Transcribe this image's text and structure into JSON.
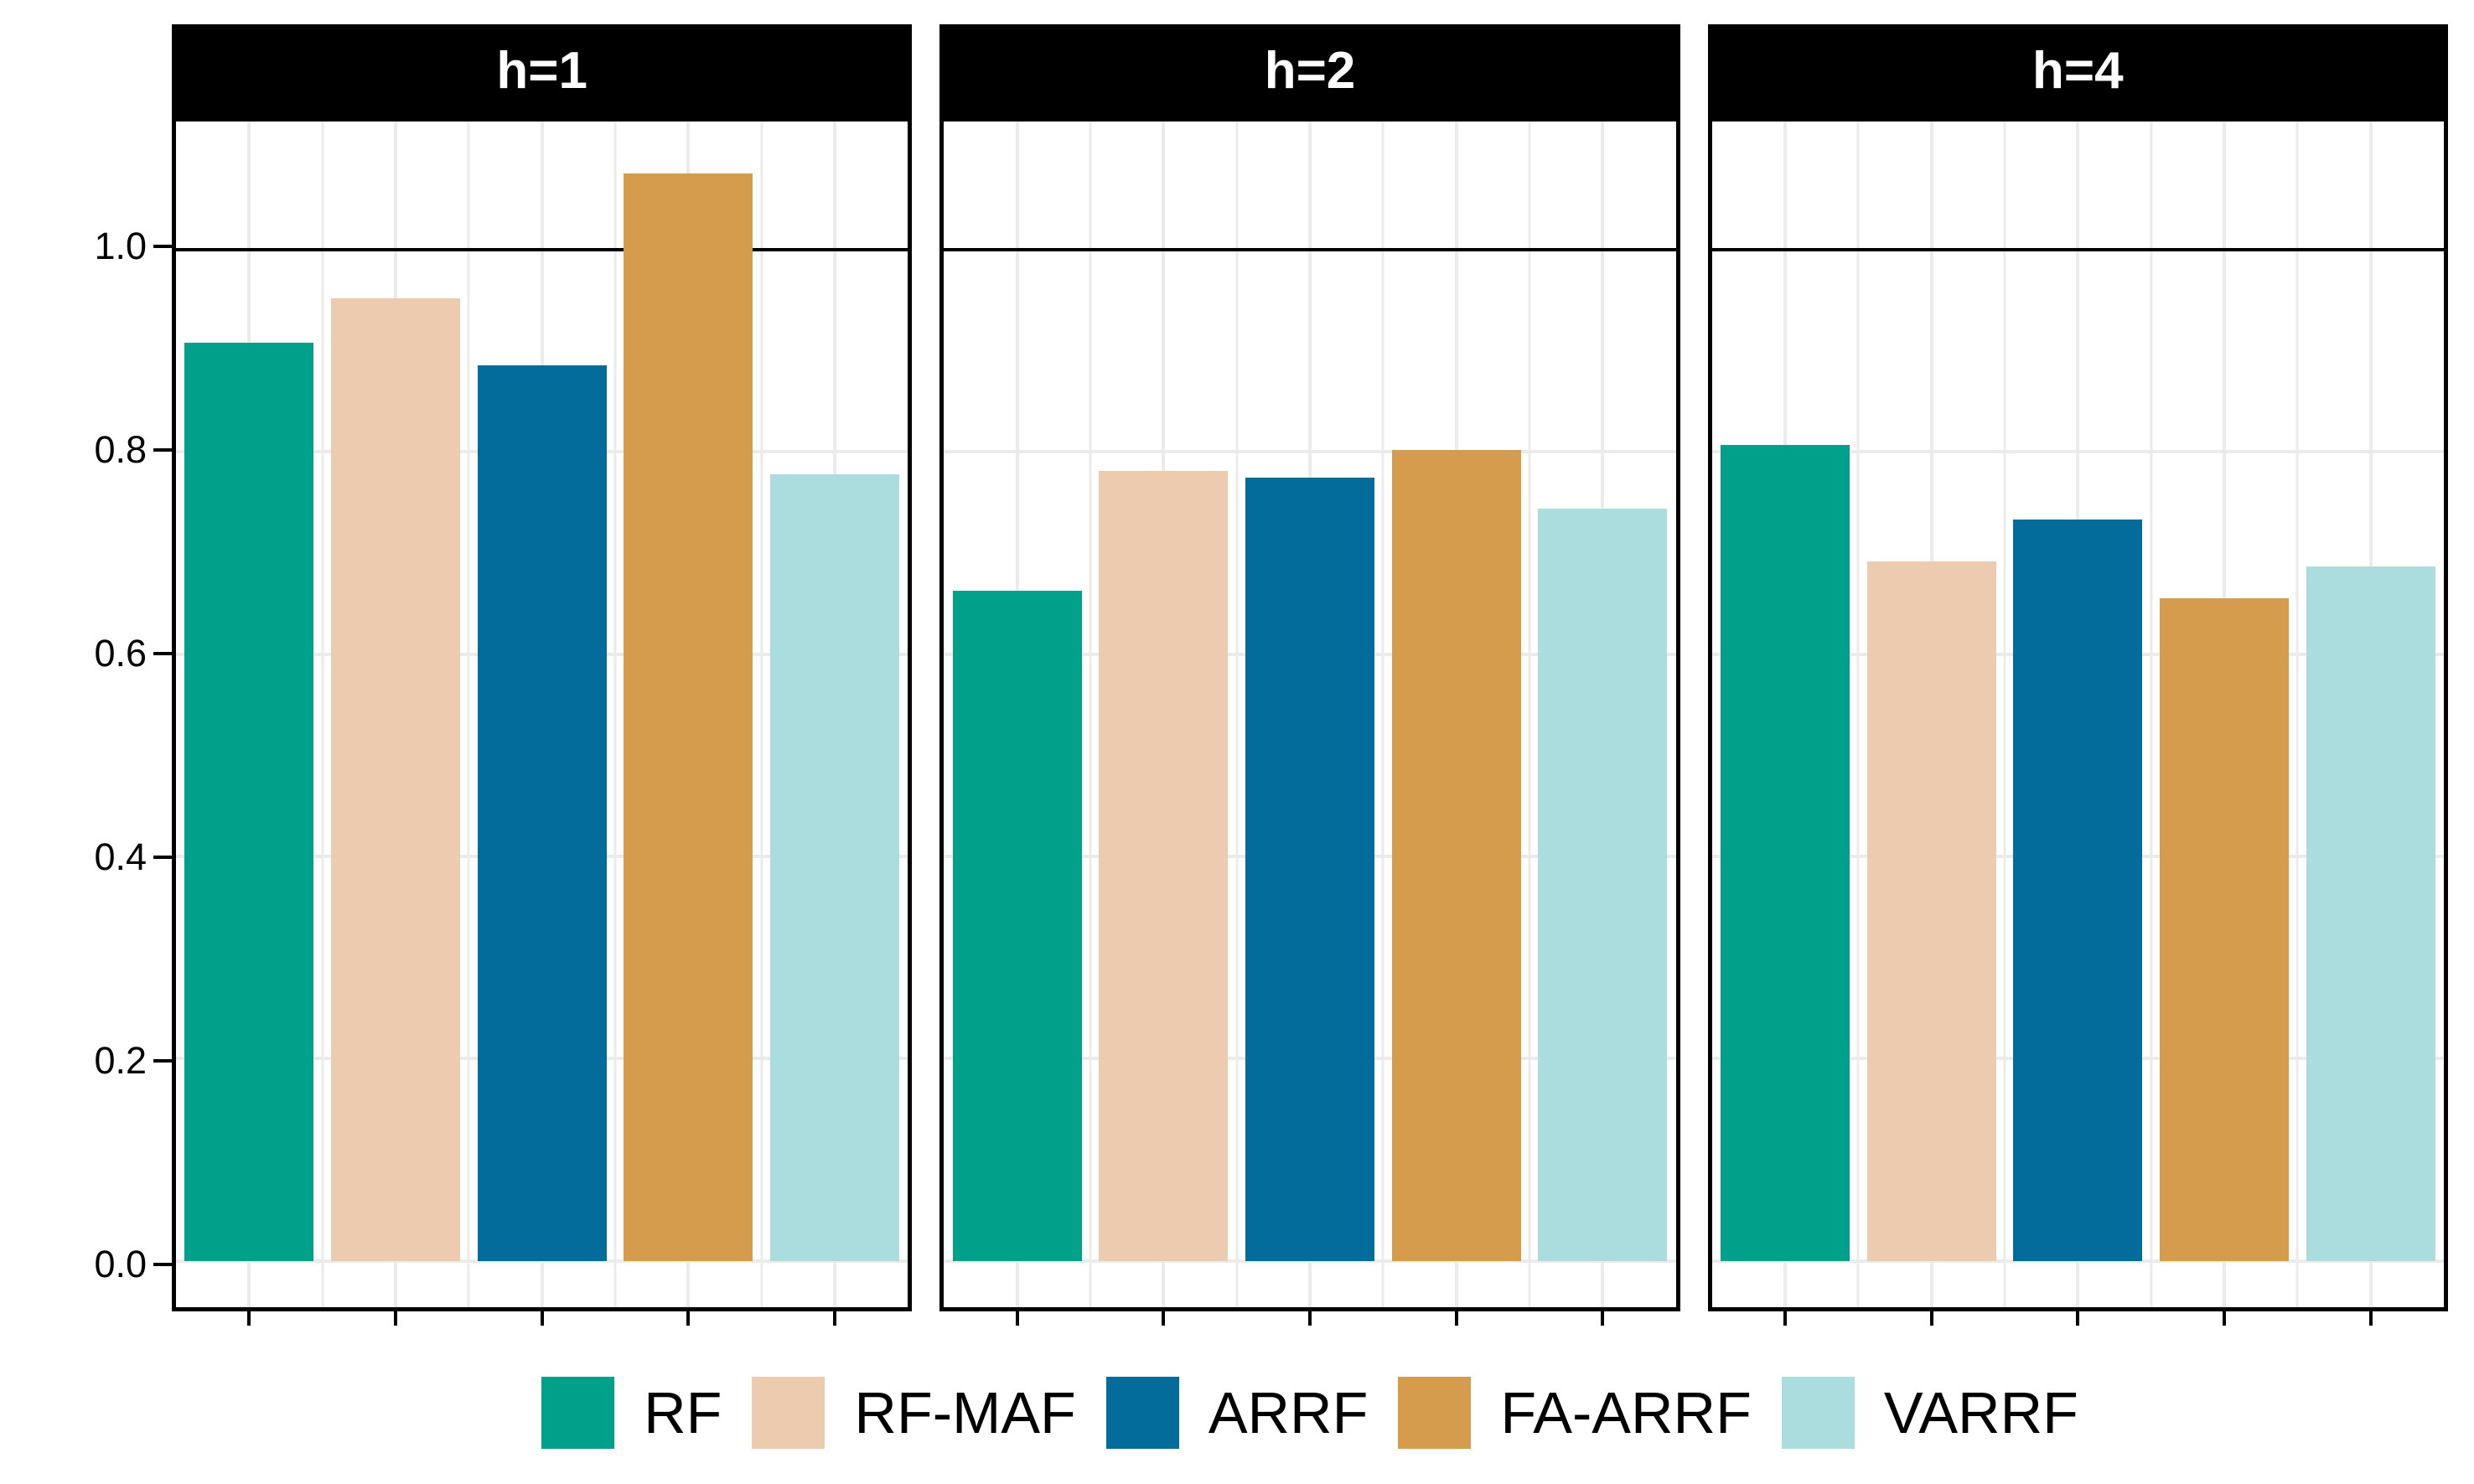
{
  "chart_data": {
    "type": "bar",
    "title": "",
    "facets": [
      {
        "label": "h=1",
        "values": [
          0.908,
          0.952,
          0.886,
          1.076,
          0.778
        ]
      },
      {
        "label": "h=2",
        "values": [
          0.663,
          0.781,
          0.775,
          0.802,
          0.744
        ]
      },
      {
        "label": "h=4",
        "values": [
          0.807,
          0.692,
          0.733,
          0.655,
          0.687
        ]
      }
    ],
    "series": [
      {
        "name": "RF",
        "color": "#00A08A"
      },
      {
        "name": "RF-MAF",
        "color": "#ECCBAE"
      },
      {
        "name": "ARRF",
        "color": "#046C9A"
      },
      {
        "name": "FA-ARRF",
        "color": "#D69C4E"
      },
      {
        "name": "VARRF",
        "color": "#ABDDDE"
      }
    ],
    "y_axis": {
      "tick_labels": [
        "0.0",
        "0.2",
        "0.4",
        "0.6",
        "0.8",
        "1.0"
      ],
      "tick_values": [
        0.0,
        0.2,
        0.4,
        0.6,
        0.8,
        1.0
      ]
    },
    "ylim": [
      -0.046,
      1.127
    ],
    "reference_line": 1.0,
    "bar_width_frac": 0.176,
    "grid": true,
    "legend_position": "bottom"
  },
  "style": {
    "strip_bg": "#000000",
    "strip_text_color": "#FFFFFF",
    "grid_color": "#EBEBEB",
    "panel_border_color": "#000000",
    "reference_line_color": "#000000",
    "axis_text_color": "#000000",
    "background": "#FFFFFF"
  }
}
